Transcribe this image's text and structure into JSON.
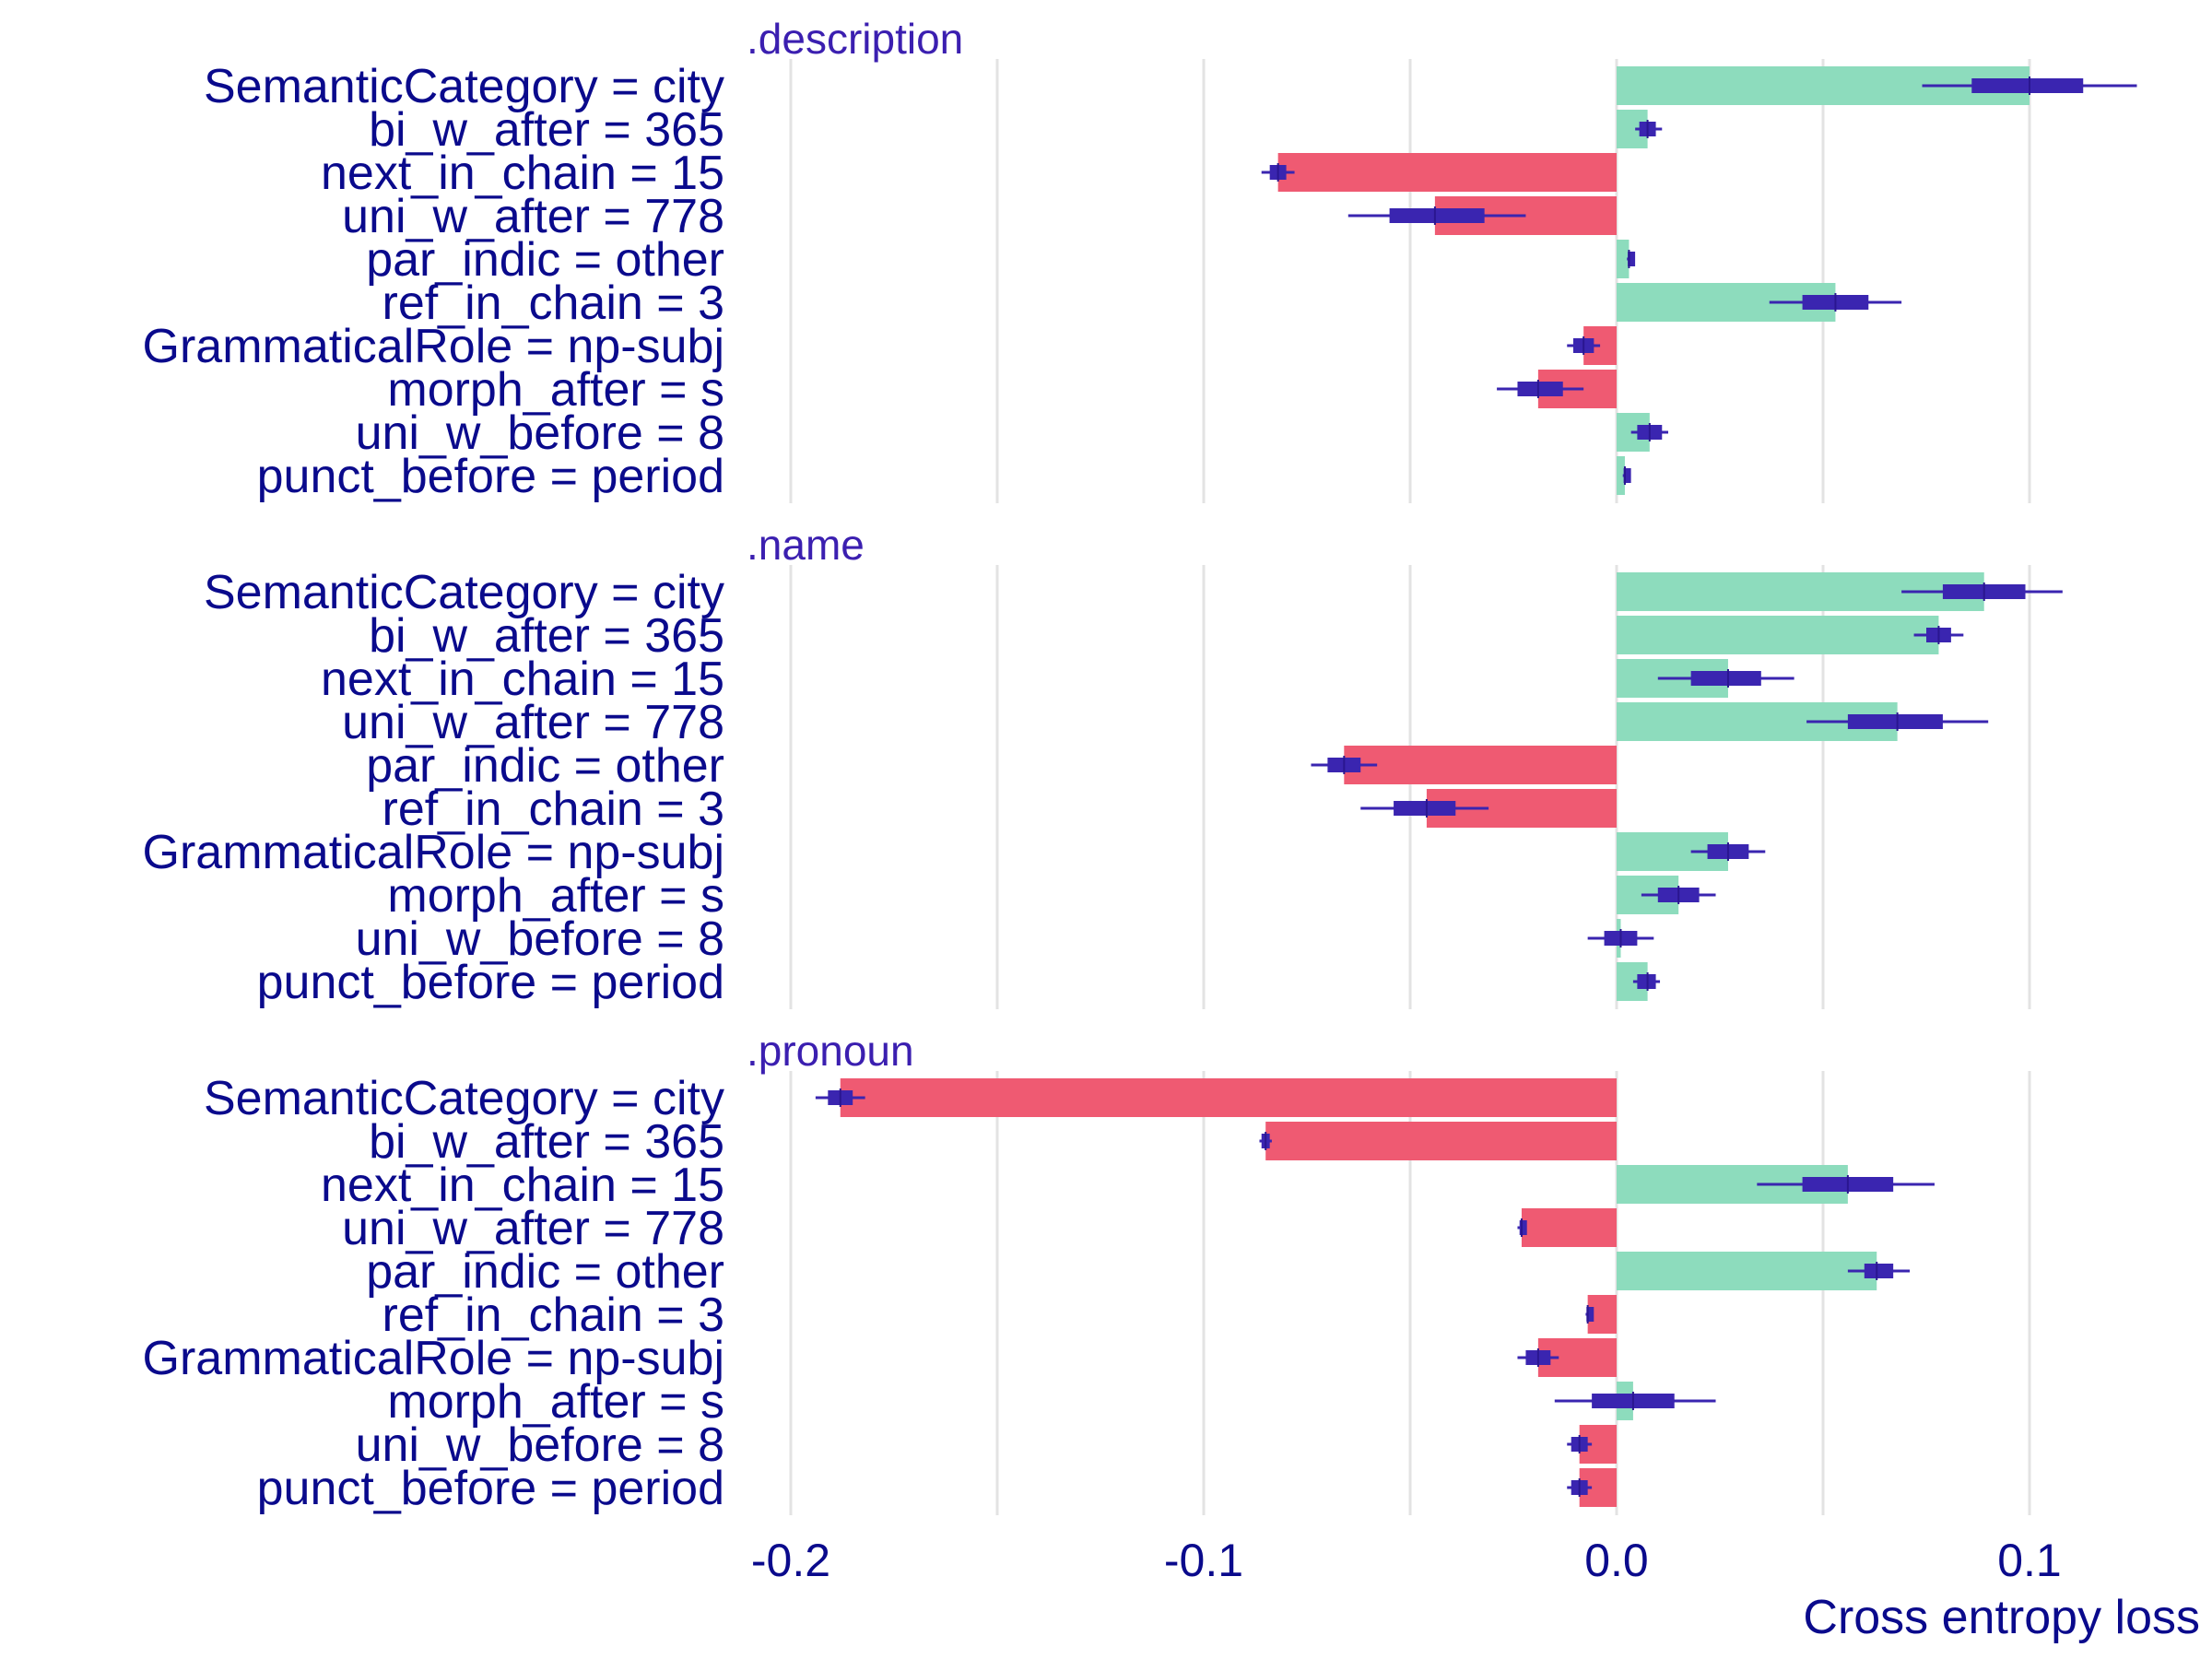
{
  "chart_data": {
    "type": "bar",
    "title": "",
    "xlabel": "Cross entropy loss",
    "ylabel": "",
    "xlim": [
      -0.2,
      0.135
    ],
    "x_ticks": [
      -0.2,
      -0.1,
      0.0,
      0.1
    ],
    "x_tick_labels": [
      "-0.2",
      "-0.1",
      "0.0",
      "0.1"
    ],
    "grid": true,
    "colors": {
      "positive": "#8ddcbd",
      "negative": "#ef5a72",
      "boxplot": "#3a25b0"
    },
    "categories": [
      "SemanticCategory = city",
      "bi_w_after = 365",
      "next_in_chain = 15",
      "uni_w_after = 778",
      "par_indic = other",
      "ref_in_chain = 3",
      "GrammaticalRole = np-subj",
      "morph_after = s",
      "uni_w_before = 8",
      "punct_before = period"
    ],
    "panels": [
      {
        "name": ".description",
        "values": [
          0.1,
          0.0075,
          -0.082,
          -0.044,
          0.003,
          0.053,
          -0.008,
          -0.019,
          0.008,
          0.002
        ],
        "box": [
          {
            "whisker": [
              0.074,
              0.126
            ],
            "iqr": [
              0.086,
              0.113
            ],
            "median": 0.1
          },
          {
            "whisker": [
              0.0045,
              0.011
            ],
            "iqr": [
              0.0055,
              0.0095
            ],
            "median": 0.0075
          },
          {
            "whisker": [
              -0.086,
              -0.078
            ],
            "iqr": [
              -0.084,
              -0.08
            ],
            "median": -0.082
          },
          {
            "whisker": [
              -0.065,
              -0.022
            ],
            "iqr": [
              -0.055,
              -0.032
            ],
            "median": -0.044
          },
          {
            "whisker": [
              0.0025,
              0.0035
            ],
            "iqr": [
              0.0027,
              0.0033
            ],
            "median": 0.003
          },
          {
            "whisker": [
              0.037,
              0.069
            ],
            "iqr": [
              0.045,
              0.061
            ],
            "median": 0.053
          },
          {
            "whisker": [
              -0.012,
              -0.004
            ],
            "iqr": [
              -0.0105,
              -0.0055
            ],
            "median": -0.008
          },
          {
            "whisker": [
              -0.029,
              -0.008
            ],
            "iqr": [
              -0.024,
              -0.013
            ],
            "median": -0.019
          },
          {
            "whisker": [
              0.0035,
              0.0125
            ],
            "iqr": [
              0.005,
              0.011
            ],
            "median": 0.008
          },
          {
            "whisker": [
              0.0015,
              0.0025
            ],
            "iqr": [
              0.0017,
              0.0023
            ],
            "median": 0.002
          }
        ]
      },
      {
        "name": ".name",
        "values": [
          0.089,
          0.078,
          0.027,
          0.068,
          -0.066,
          -0.046,
          0.027,
          0.015,
          0.001,
          0.0075
        ],
        "box": [
          {
            "whisker": [
              0.069,
              0.108
            ],
            "iqr": [
              0.079,
              0.099
            ],
            "median": 0.089
          },
          {
            "whisker": [
              0.072,
              0.084
            ],
            "iqr": [
              0.075,
              0.081
            ],
            "median": 0.078
          },
          {
            "whisker": [
              0.01,
              0.043
            ],
            "iqr": [
              0.018,
              0.035
            ],
            "median": 0.027
          },
          {
            "whisker": [
              0.046,
              0.09
            ],
            "iqr": [
              0.056,
              0.079
            ],
            "median": 0.068
          },
          {
            "whisker": [
              -0.074,
              -0.058
            ],
            "iqr": [
              -0.07,
              -0.062
            ],
            "median": -0.066
          },
          {
            "whisker": [
              -0.062,
              -0.031
            ],
            "iqr": [
              -0.054,
              -0.039
            ],
            "median": -0.046
          },
          {
            "whisker": [
              0.018,
              0.036
            ],
            "iqr": [
              0.022,
              0.032
            ],
            "median": 0.027
          },
          {
            "whisker": [
              0.006,
              0.024
            ],
            "iqr": [
              0.01,
              0.02
            ],
            "median": 0.015
          },
          {
            "whisker": [
              -0.007,
              0.009
            ],
            "iqr": [
              -0.003,
              0.005
            ],
            "median": 0.001
          },
          {
            "whisker": [
              0.004,
              0.0105
            ],
            "iqr": [
              0.005,
              0.0095
            ],
            "median": 0.0075
          }
        ]
      },
      {
        "name": ".pronoun",
        "values": [
          -0.188,
          -0.085,
          0.056,
          -0.023,
          0.063,
          -0.007,
          -0.019,
          0.004,
          -0.009,
          -0.009
        ],
        "box": [
          {
            "whisker": [
              -0.194,
              -0.182
            ],
            "iqr": [
              -0.191,
              -0.185
            ],
            "median": -0.188
          },
          {
            "whisker": [
              -0.0865,
              -0.0835
            ],
            "iqr": [
              -0.086,
              -0.084
            ],
            "median": -0.085
          },
          {
            "whisker": [
              0.034,
              0.077
            ],
            "iqr": [
              0.045,
              0.067
            ],
            "median": 0.056
          },
          {
            "whisker": [
              -0.024,
              -0.022
            ],
            "iqr": [
              -0.0235,
              -0.0225
            ],
            "median": -0.023
          },
          {
            "whisker": [
              0.056,
              0.071
            ],
            "iqr": [
              0.06,
              0.067
            ],
            "median": 0.063
          },
          {
            "whisker": [
              -0.0075,
              -0.0065
            ],
            "iqr": [
              -0.0073,
              -0.0067
            ],
            "median": -0.007
          },
          {
            "whisker": [
              -0.024,
              -0.014
            ],
            "iqr": [
              -0.022,
              -0.016
            ],
            "median": -0.019
          },
          {
            "whisker": [
              -0.015,
              0.024
            ],
            "iqr": [
              -0.006,
              0.014
            ],
            "median": 0.004
          },
          {
            "whisker": [
              -0.012,
              -0.006
            ],
            "iqr": [
              -0.011,
              -0.007
            ],
            "median": -0.009
          },
          {
            "whisker": [
              -0.012,
              -0.006
            ],
            "iqr": [
              -0.011,
              -0.007
            ],
            "median": -0.009
          }
        ]
      }
    ]
  }
}
